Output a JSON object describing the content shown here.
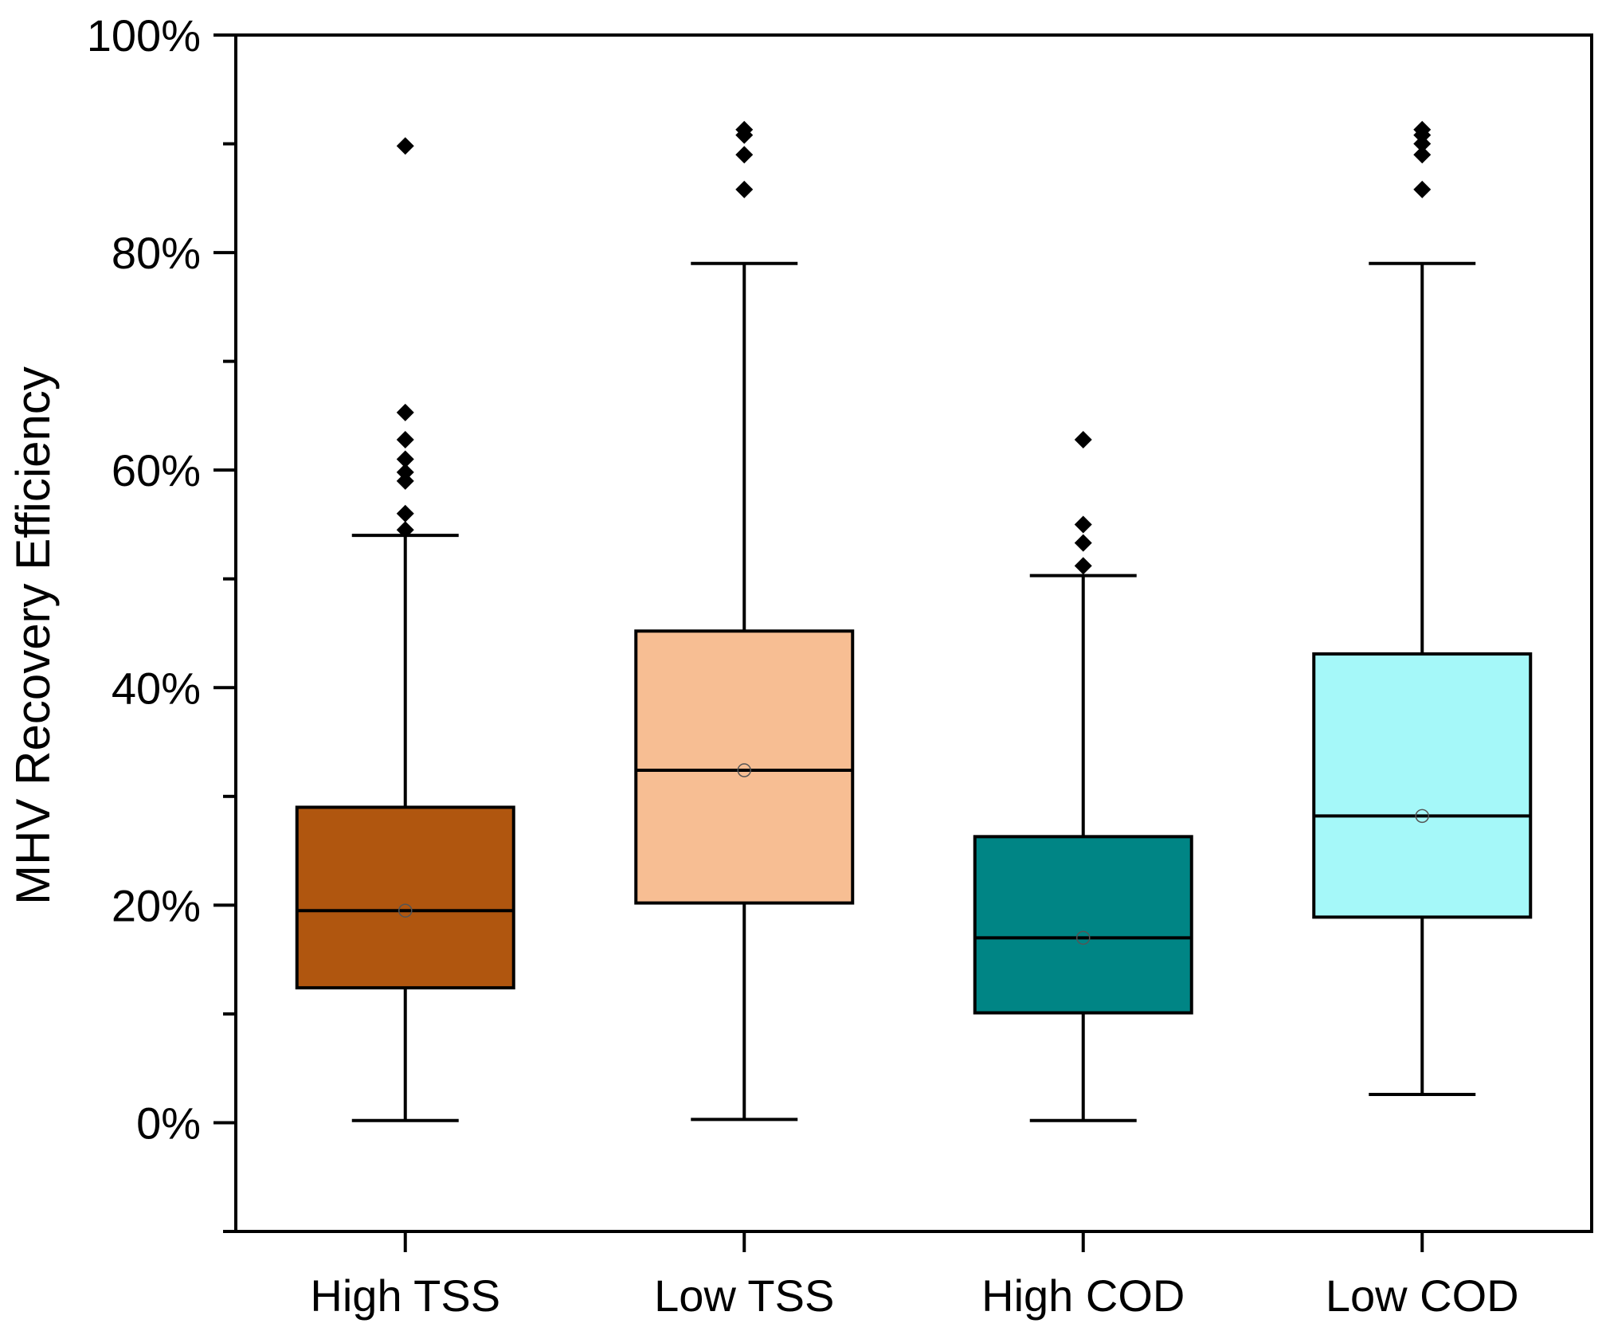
{
  "chart_data": {
    "type": "box",
    "title": "",
    "xlabel": "",
    "ylabel": "MHV Recovery Efficiency",
    "ylim": [
      -10,
      100
    ],
    "yticks": [
      0,
      20,
      40,
      60,
      80,
      100
    ],
    "ytick_labels": [
      "0%",
      "20%",
      "40%",
      "60%",
      "80%",
      "100%"
    ],
    "minor_yticks": [
      -10,
      10,
      30,
      50,
      70,
      90
    ],
    "grid": false,
    "categories": [
      "High TSS",
      "Low TSS",
      "High COD",
      "Low COD"
    ],
    "series": [
      {
        "name": "High TSS",
        "color": "#b0560f",
        "whisker_low": 0.2,
        "q1": 12.4,
        "median": 19.5,
        "mean": 19.5,
        "q3": 29.0,
        "whisker_high": 54.0,
        "outliers": [
          54.5,
          56.0,
          59.0,
          59.8,
          61.0,
          62.8,
          65.3,
          89.8
        ]
      },
      {
        "name": "Low TSS",
        "color": "#f7be93",
        "whisker_low": 0.3,
        "q1": 20.2,
        "median": 32.4,
        "mean": 32.4,
        "q3": 45.2,
        "whisker_high": 79.0,
        "outliers": [
          85.8,
          89.0,
          90.8,
          91.3
        ]
      },
      {
        "name": "High COD",
        "color": "#008585",
        "whisker_low": 0.2,
        "q1": 10.1,
        "median": 17.0,
        "mean": 17.0,
        "q3": 26.3,
        "whisker_high": 50.3,
        "outliers": [
          51.2,
          53.3,
          55.0,
          62.8
        ]
      },
      {
        "name": "Low COD",
        "color": "#a5f8f9",
        "whisker_low": 2.6,
        "q1": 18.9,
        "median": 28.2,
        "mean": 28.2,
        "q3": 43.1,
        "whisker_high": 79.0,
        "outliers": [
          85.8,
          89.0,
          90.0,
          90.8,
          91.3
        ]
      }
    ]
  }
}
